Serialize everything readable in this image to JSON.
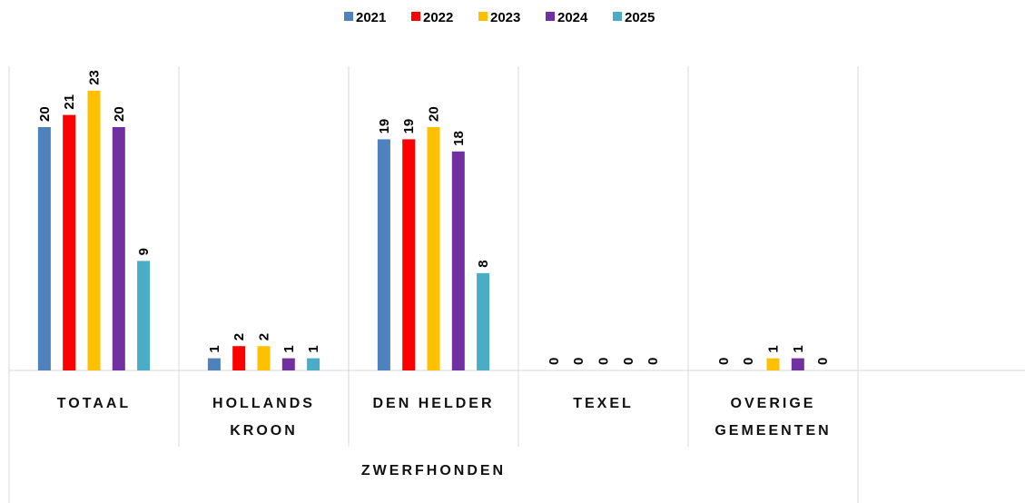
{
  "chart_data": {
    "type": "bar",
    "xlabel": "ZWERFHONDEN",
    "categories": [
      "TOTAAL",
      "HOLLANDS KROON",
      "DEN HELDER",
      "TEXEL",
      "OVERIGE GEMEENTEN"
    ],
    "series": [
      {
        "name": "2021",
        "color": "#4f81bd",
        "values": [
          20,
          1,
          19,
          0,
          0
        ]
      },
      {
        "name": "2022",
        "color": "#ff0000",
        "values": [
          21,
          2,
          19,
          0,
          0
        ]
      },
      {
        "name": "2023",
        "color": "#ffc000",
        "values": [
          23,
          2,
          20,
          0,
          1
        ]
      },
      {
        "name": "2024",
        "color": "#7030a0",
        "values": [
          20,
          1,
          18,
          0,
          1
        ]
      },
      {
        "name": "2025",
        "color": "#4bacc6",
        "values": [
          9,
          1,
          8,
          0,
          0
        ]
      }
    ],
    "ylim": [
      0,
      25
    ],
    "legend": "top"
  }
}
